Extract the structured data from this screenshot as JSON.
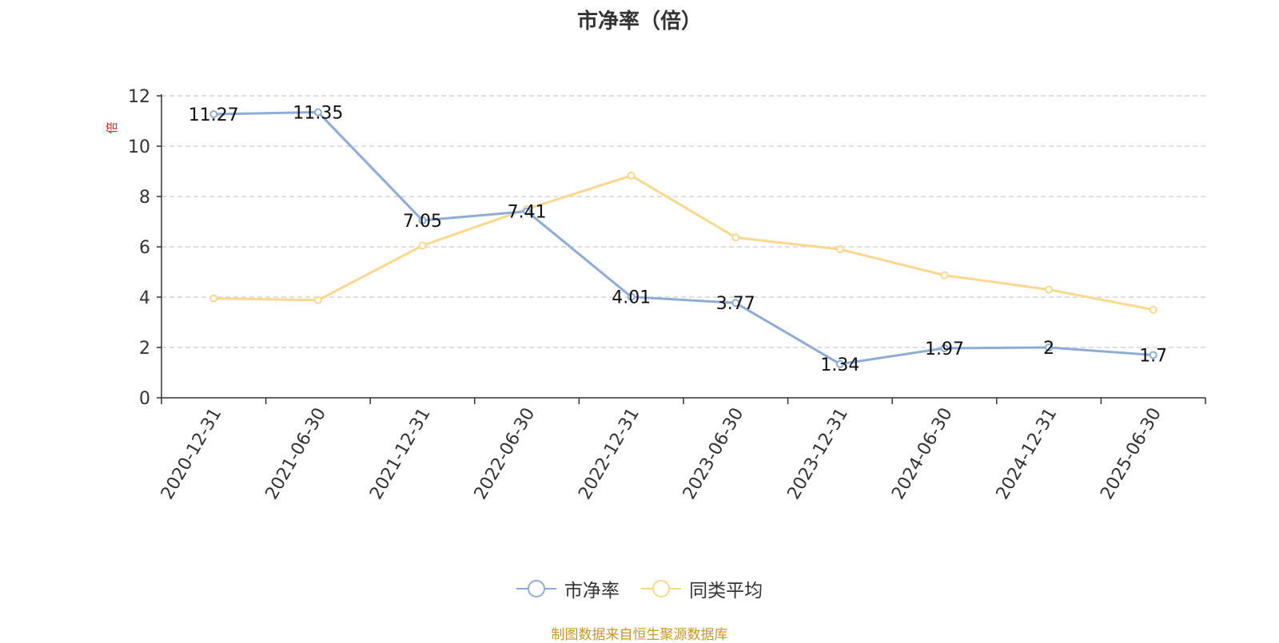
{
  "chart_data": {
    "type": "line",
    "title": "市净率（倍）",
    "ylabel": "倍",
    "ylim": [
      0,
      12
    ],
    "yticks": [
      0,
      2,
      4,
      6,
      8,
      10,
      12
    ],
    "grid": true,
    "legend_placement": "bottom",
    "categories": [
      "2020-12-31",
      "2021-06-30",
      "2021-12-31",
      "2022-06-30",
      "2022-12-31",
      "2023-06-30",
      "2023-12-31",
      "2024-06-30",
      "2024-12-31",
      "2025-06-30"
    ],
    "series": [
      {
        "name": "市净率",
        "color": "#8eacd8",
        "values": [
          11.27,
          11.35,
          7.05,
          7.41,
          4.01,
          3.77,
          1.34,
          1.97,
          2,
          1.7
        ],
        "data_labels": [
          "11.27",
          "11.35",
          "7.05",
          "7.41",
          "4.01",
          "3.77",
          "1.34",
          "1.97",
          "2",
          "1.7"
        ]
      },
      {
        "name": "同类平均",
        "color": "#fbd88d",
        "values": [
          3.95,
          3.88,
          6.05,
          7.5,
          8.83,
          6.37,
          5.9,
          4.87,
          4.3,
          3.5
        ]
      }
    ]
  },
  "source": "制图数据来自恒生聚源数据库"
}
